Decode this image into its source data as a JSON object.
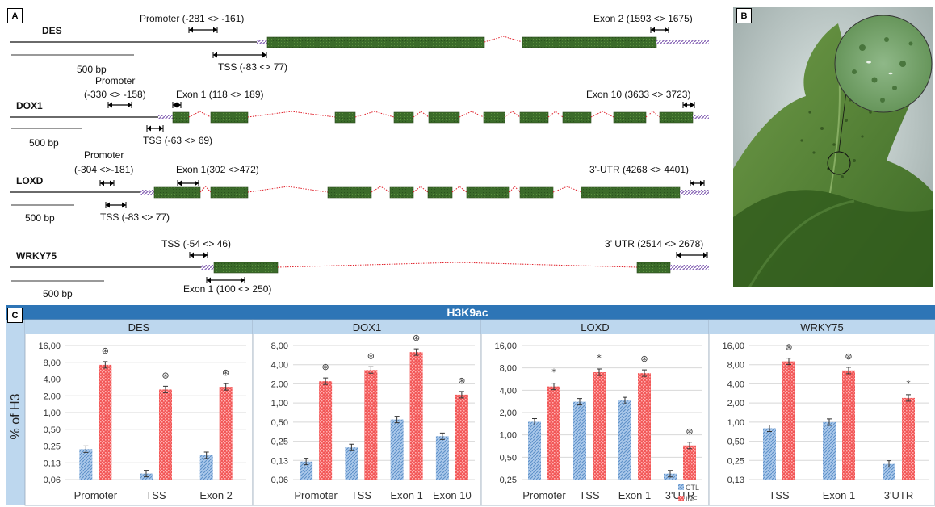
{
  "panels": {
    "a": "A",
    "b": "B",
    "c": "C"
  },
  "genes": [
    {
      "name": "DES",
      "scale_label": "500 bp",
      "annotations": [
        {
          "id": "promoter",
          "label": "Promoter (-281 <> -161)"
        },
        {
          "id": "tss",
          "label": "TSS (-83 <> 77)"
        },
        {
          "id": "exon2",
          "label": "Exon 2 (1593 <> 1675)"
        }
      ]
    },
    {
      "name": "DOX1",
      "scale_label": "500 bp",
      "annotations": [
        {
          "id": "promoter",
          "label": "Promoter",
          "label2": "(-330 <> -158)"
        },
        {
          "id": "exon1",
          "label": "Exon 1 (118 <> 189)"
        },
        {
          "id": "tss",
          "label": "TSS (-63 <> 69)"
        },
        {
          "id": "exon10",
          "label": "Exon 10 (3633 <> 3723)"
        }
      ]
    },
    {
      "name": "LOXD",
      "scale_label": "500 bp",
      "annotations": [
        {
          "id": "promoter",
          "label": "Promoter",
          "label2": "(-304 <>-181)"
        },
        {
          "id": "exon1",
          "label": "Exon 1(302 <>472)"
        },
        {
          "id": "tss",
          "label": "TSS  (-83 <> 77)"
        },
        {
          "id": "utr3",
          "label": "3'-UTR  (4268 <> 4401)"
        }
      ]
    },
    {
      "name": "WRKY75",
      "scale_label": "500 bp",
      "annotations": [
        {
          "id": "tss",
          "label": "TSS (-54 <> 46)"
        },
        {
          "id": "exon1",
          "label": "Exon 1 (100 <> 250)"
        },
        {
          "id": "utr3",
          "label": "3’ UTR (2514 <> 2678)"
        }
      ]
    }
  ],
  "colors": {
    "exon": "#3b6b2a",
    "utr": "#8b6ab8",
    "intron": "#e0202a",
    "ctl": "#7eaee0",
    "inf": "#f04848",
    "header": "#2e75b6",
    "subheader": "#bdd7ee"
  },
  "chart_data": {
    "type": "bar",
    "title": "H3K9ac",
    "ylabel": "% of H3",
    "y_scale": "log2",
    "legend": {
      "entries": [
        "CTL",
        "INF"
      ],
      "placement": "bottom-right of LOXD panel"
    },
    "panels": [
      {
        "gene": "DES",
        "ytick_labels": [
          "0,06",
          "0,13",
          "0,25",
          "0,50",
          "1,00",
          "2,00",
          "4,00",
          "8,00",
          "16,00"
        ],
        "ylim": [
          0.0625,
          16
        ],
        "categories": [
          "Promoter",
          "TSS",
          "Exon 2"
        ],
        "series": [
          {
            "name": "CTL",
            "values": [
              0.22,
              0.08,
              0.17
            ]
          },
          {
            "name": "INF",
            "values": [
              7.2,
              2.6,
              2.9
            ]
          }
        ],
        "significance": [
          "⊛",
          "⊛",
          "⊛"
        ]
      },
      {
        "gene": "DOX1",
        "ytick_labels": [
          "0,06",
          "0,13",
          "0,25",
          "0,50",
          "1,00",
          "2,00",
          "4,00",
          "8,00"
        ],
        "ylim": [
          0.0625,
          8
        ],
        "categories": [
          "Promoter",
          "TSS",
          "Exon 1",
          "Exon 10"
        ],
        "series": [
          {
            "name": "CTL",
            "values": [
              0.12,
              0.2,
              0.55,
              0.3
            ]
          },
          {
            "name": "INF",
            "values": [
              2.2,
              3.3,
              6.3,
              1.35
            ]
          }
        ],
        "significance": [
          "⊛",
          "⊛",
          "⊛",
          "⊛"
        ]
      },
      {
        "gene": "LOXD",
        "ytick_labels": [
          "0,25",
          "0,50",
          "1,00",
          "2,00",
          "4,00",
          "8,00",
          "16,00"
        ],
        "ylim": [
          0.25,
          16
        ],
        "categories": [
          "Promoter",
          "TSS",
          "Exon 1",
          "3'UTR"
        ],
        "series": [
          {
            "name": "CTL",
            "values": [
              1.5,
              2.8,
              2.9,
              0.3
            ]
          },
          {
            "name": "INF",
            "values": [
              4.5,
              7.0,
              6.8,
              0.72
            ]
          }
        ],
        "significance": [
          "*",
          "*",
          "⊛",
          "⊛"
        ]
      },
      {
        "gene": "WRKY75",
        "ytick_labels": [
          "0,13",
          "0,25",
          "0,50",
          "1,00",
          "2,00",
          "4,00",
          "8,00",
          "16,00"
        ],
        "ylim": [
          0.125,
          16
        ],
        "categories": [
          "TSS",
          "Exon 1",
          "3'UTR"
        ],
        "series": [
          {
            "name": "CTL",
            "values": [
              0.8,
              1.0,
              0.22
            ]
          },
          {
            "name": "INF",
            "values": [
              9.0,
              6.5,
              2.4
            ]
          }
        ],
        "significance": [
          "⊛",
          "⊛",
          "*"
        ]
      }
    ]
  }
}
